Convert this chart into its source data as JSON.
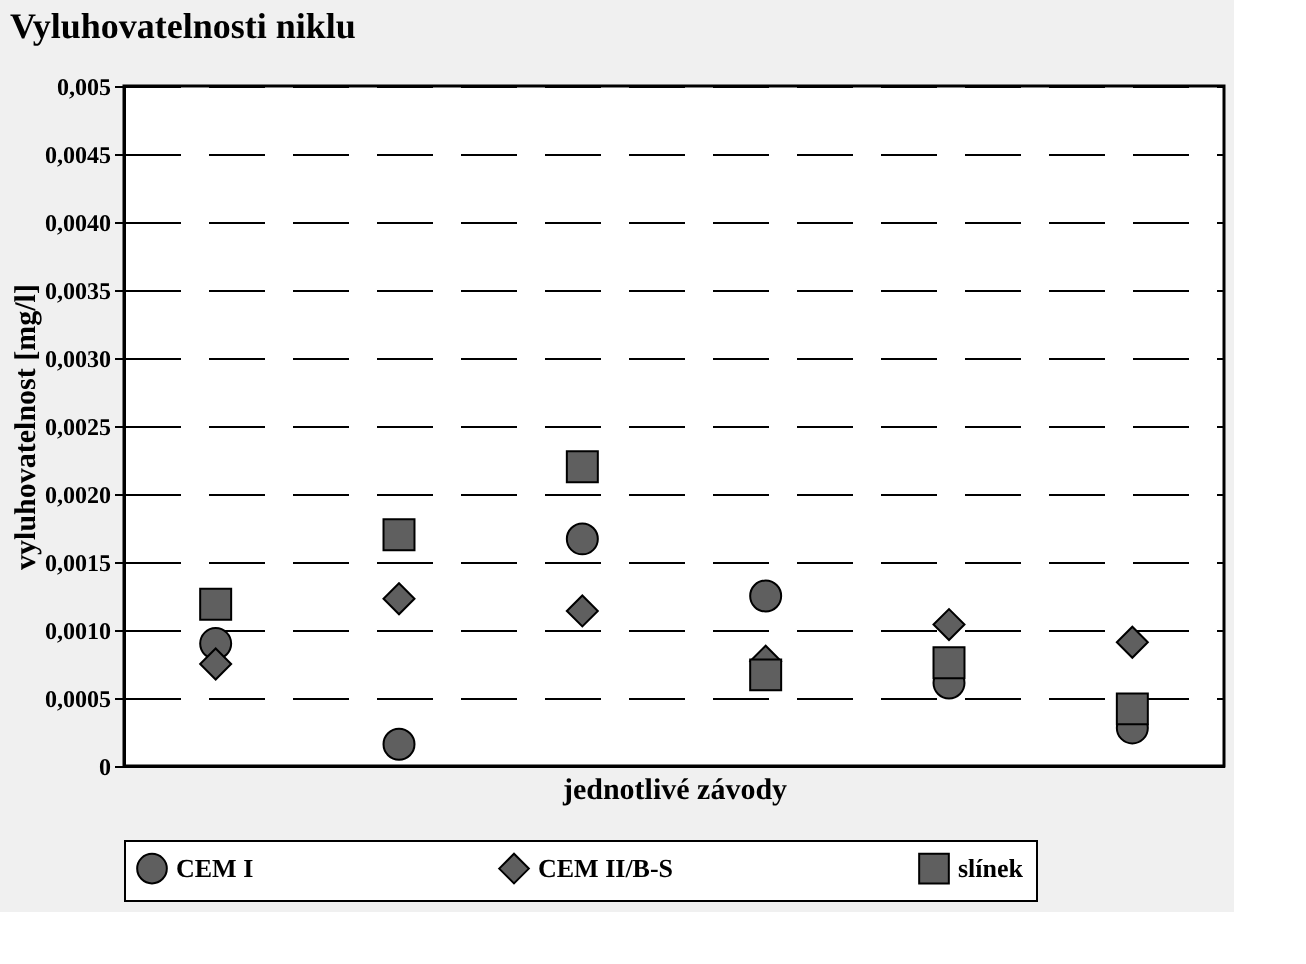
{
  "chart_data": {
    "type": "scatter",
    "title": "Vyluhovatelnosti niklu",
    "xlabel": "jednotlivé závody",
    "ylabel": "vyluhovatelnost [mg/l]",
    "categories": [
      null,
      null,
      null,
      null,
      null,
      null
    ],
    "series": [
      {
        "name": "CEM I",
        "color": "#5f5f5f",
        "marker": "circle",
        "values": [
          0.0009,
          0.00016,
          0.00167,
          0.00125,
          0.00061,
          0.00028
        ]
      },
      {
        "name": "CEM II/B-S",
        "color": "#5f5f5f",
        "marker": "diamond",
        "values": [
          0.00075,
          0.00123,
          0.00114,
          0.00077,
          0.00104,
          0.00091
        ]
      },
      {
        "name": "slínek",
        "color": "#5f5f5f",
        "marker": "square",
        "values": [
          0.00119,
          0.0017,
          0.0022,
          0.00067,
          0.00076,
          0.00042
        ]
      }
    ],
    "ylim": [
      0,
      0.005
    ],
    "yticks": [
      0,
      {
        "value": 0.0005,
        "label": "0,0005"
      },
      {
        "value": 0.001,
        "label": "0,0010"
      },
      {
        "value": 0.0015,
        "label": "0,0015"
      },
      {
        "value": 0.002,
        "label": "0,0020"
      },
      {
        "value": 0.0025,
        "label": "0,0025"
      },
      {
        "value": 0.003,
        "label": "0,0030"
      },
      {
        "value": 0.0035,
        "label": "0,0035"
      },
      {
        "value": 0.004,
        "label": "0,0040"
      },
      {
        "value": 0.0045,
        "label": "0,0045"
      },
      {
        "value": 0.005,
        "label": "0,005"
      }
    ],
    "grid": "y",
    "line_style": "dashed",
    "legend": "bottom",
    "tick_labels": "y"
  }
}
